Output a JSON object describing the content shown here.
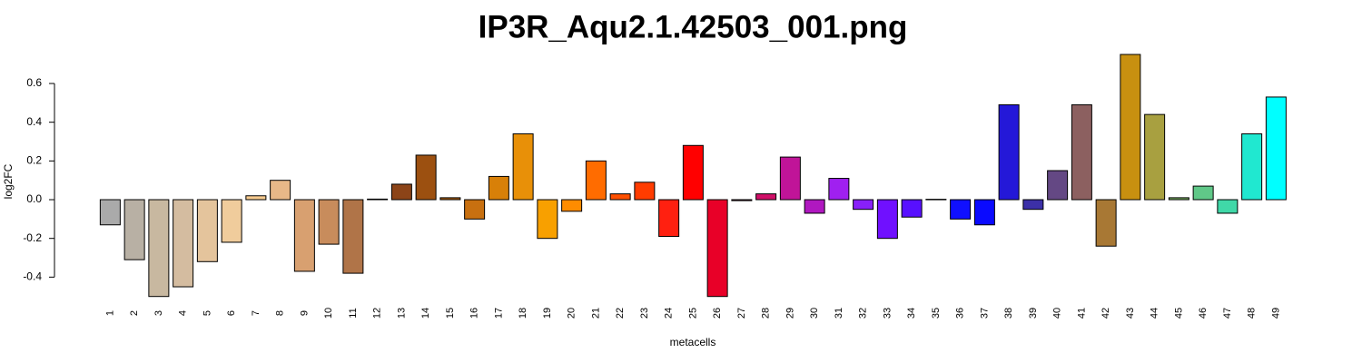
{
  "chart_data": {
    "type": "bar",
    "title": "IP3R_Aqu2.1.42503_001.png",
    "xlabel": "metacells",
    "ylabel": "log2FC",
    "categories": [
      "1",
      "2",
      "3",
      "4",
      "5",
      "6",
      "7",
      "8",
      "9",
      "10",
      "11",
      "12",
      "13",
      "14",
      "15",
      "16",
      "17",
      "18",
      "19",
      "20",
      "21",
      "22",
      "23",
      "24",
      "25",
      "26",
      "27",
      "28",
      "29",
      "30",
      "31",
      "32",
      "33",
      "34",
      "35",
      "36",
      "37",
      "38",
      "39",
      "40",
      "41",
      "42",
      "43",
      "44",
      "45",
      "46",
      "47",
      "48",
      "49"
    ],
    "values": [
      -0.13,
      -0.31,
      -0.5,
      -0.45,
      -0.32,
      -0.22,
      0.02,
      0.1,
      -0.37,
      -0.23,
      -0.38,
      0.003,
      0.08,
      0.23,
      0.01,
      -0.1,
      0.12,
      0.34,
      -0.2,
      -0.06,
      0.2,
      0.03,
      0.09,
      -0.19,
      0.28,
      -0.5,
      -0.005,
      0.03,
      0.22,
      -0.07,
      0.11,
      -0.05,
      -0.2,
      -0.09,
      0.002,
      -0.1,
      -0.13,
      0.49,
      -0.05,
      0.15,
      0.49,
      -0.24,
      0.75,
      0.44,
      0.01,
      0.07,
      -0.07,
      0.34,
      0.53
    ],
    "colors": [
      "#aaaaaa",
      "#b8b0a4",
      "#c8b8a0",
      "#d4bca0",
      "#e4c49c",
      "#f0cc9c",
      "#f8cc90",
      "#e8b888",
      "#d8a070",
      "#c88c5c",
      "#b07448",
      "#a06030",
      "#8c4418",
      "#9c5010",
      "#b06010",
      "#c87010",
      "#d88008",
      "#e89008",
      "#f8a000",
      "#ff8c00",
      "#ff6c00",
      "#ff5000",
      "#ff3c00",
      "#ff2010",
      "#ff0000",
      "#e80028",
      "#d80048",
      "#d01068",
      "#c01498",
      "#b018c0",
      "#a020f0",
      "#8820f8",
      "#7010ff",
      "#5810ff",
      "#3010ff",
      "#1010ff",
      "#0a0aff",
      "#2418d8",
      "#3c30a8",
      "#644884",
      "#8c6060",
      "#a87834",
      "#c89010",
      "#a8a040",
      "#78b060",
      "#60c888",
      "#40d8a8",
      "#20e8d0",
      "#00ffff"
    ],
    "ylim": [
      -0.5,
      0.75
    ],
    "yticks": [
      -0.4,
      -0.2,
      {
        "value": 0,
        "label": "0.0"
      },
      0.2,
      0.4,
      0.6
    ]
  }
}
